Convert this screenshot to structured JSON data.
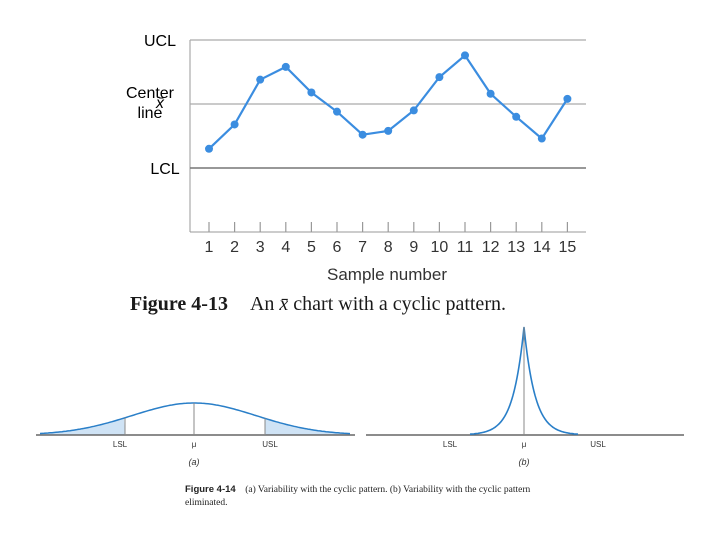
{
  "chart_data": [
    {
      "type": "line",
      "title": "",
      "xlabel": "Sample number",
      "ylabel": "",
      "x": [
        1,
        2,
        3,
        4,
        5,
        6,
        7,
        8,
        9,
        10,
        11,
        12,
        13,
        14,
        15
      ],
      "xticks": [
        "1",
        "2",
        "3",
        "4",
        "5",
        "6",
        "7",
        "8",
        "9",
        "10",
        "11",
        "12",
        "13",
        "14",
        "15"
      ],
      "series": [
        {
          "values": [
            0.3,
            0.68,
            1.38,
            1.58,
            1.18,
            0.88,
            0.52,
            0.58,
            0.9,
            1.42,
            1.76,
            1.16,
            0.8,
            0.46,
            1.08
          ]
        }
      ],
      "ylim": [
        -1,
        2
      ],
      "reference_lines": [
        {
          "label": "UCL",
          "value": 2
        },
        {
          "label": "Center line",
          "value": 1
        },
        {
          "label": "LCL",
          "value": 0
        }
      ],
      "xbar_label": "x̄",
      "grid": false,
      "color": "#3b8de0"
    },
    {
      "type": "line",
      "panel": "(a)",
      "xticks": [
        "LSL",
        "μ",
        "USL"
      ],
      "curve": "normal-wide",
      "color": "#2a7fc8"
    },
    {
      "type": "line",
      "panel": "(b)",
      "xticks": [
        "LSL",
        "μ",
        "USL"
      ],
      "curve": "normal-narrow",
      "color": "#2a7fc8"
    }
  ],
  "captions": {
    "fig13_label": "Figure 4-13",
    "fig13_text_pre": "An ",
    "fig13_text_symbol": "x̄",
    "fig13_text_post": " chart with a cyclic pattern.",
    "fig14_label": "Figure 4-14",
    "fig14_text": "(a) Variability with the cyclic pattern. (b) Variability with the cyclic pattern eliminated."
  }
}
